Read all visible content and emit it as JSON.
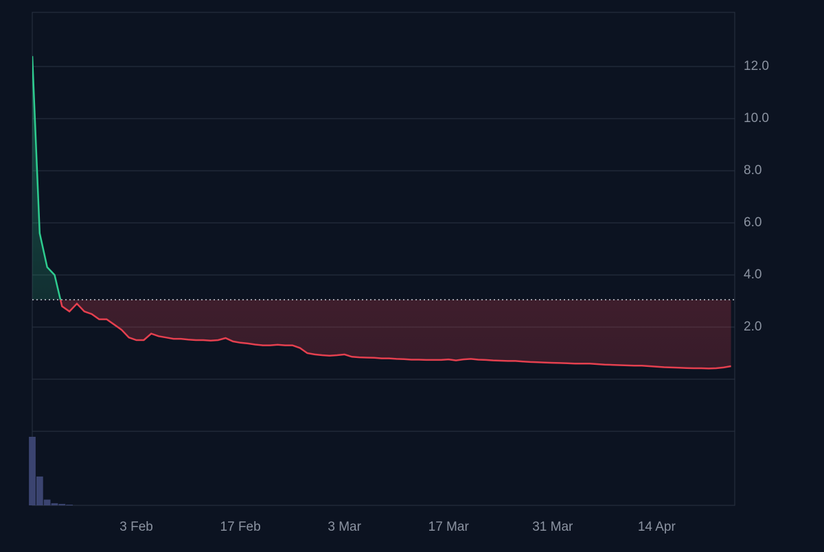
{
  "chart_data": {
    "type": "line",
    "categories": [
      null,
      null,
      null,
      null,
      null,
      null,
      null,
      null,
      null,
      null,
      null,
      null,
      null,
      null,
      "3 Feb",
      null,
      null,
      null,
      null,
      null,
      null,
      null,
      null,
      null,
      null,
      null,
      null,
      null,
      "17 Feb",
      null,
      null,
      null,
      null,
      null,
      null,
      null,
      null,
      null,
      null,
      null,
      null,
      null,
      "3 Mar",
      null,
      null,
      null,
      null,
      null,
      null,
      null,
      null,
      null,
      null,
      null,
      null,
      null,
      "17 Mar",
      null,
      null,
      null,
      null,
      null,
      null,
      null,
      null,
      null,
      null,
      null,
      null,
      null,
      "31 Mar",
      null,
      null,
      null,
      null,
      null,
      null,
      null,
      null,
      null,
      null,
      null,
      null,
      null,
      "14 Apr",
      null,
      null,
      null,
      null,
      null,
      null,
      null,
      null,
      null,
      null
    ],
    "series": [
      {
        "values": [
          12.4,
          5.6,
          4.3,
          4.0,
          2.8,
          2.6,
          2.9,
          2.6,
          2.5,
          2.3,
          2.3,
          2.1,
          1.9,
          1.6,
          1.5,
          1.5,
          1.75,
          1.65,
          1.6,
          1.55,
          1.55,
          1.52,
          1.5,
          1.5,
          1.48,
          1.5,
          1.58,
          1.45,
          1.4,
          1.37,
          1.33,
          1.3,
          1.3,
          1.32,
          1.3,
          1.3,
          1.2,
          1.0,
          0.95,
          0.92,
          0.9,
          0.92,
          0.95,
          0.86,
          0.84,
          0.83,
          0.82,
          0.8,
          0.8,
          0.78,
          0.77,
          0.75,
          0.75,
          0.74,
          0.74,
          0.74,
          0.76,
          0.72,
          0.76,
          0.78,
          0.75,
          0.74,
          0.72,
          0.71,
          0.7,
          0.7,
          0.68,
          0.66,
          0.65,
          0.64,
          0.63,
          0.62,
          0.61,
          0.6,
          0.6,
          0.6,
          0.58,
          0.56,
          0.55,
          0.54,
          0.53,
          0.52,
          0.52,
          0.5,
          0.48,
          0.46,
          0.45,
          0.44,
          0.43,
          0.42,
          0.42,
          0.41,
          0.42,
          0.45,
          0.5
        ],
        "up_color": "#2ecc8f",
        "down_color": "#e5404f"
      }
    ],
    "baseline": 3.05,
    "volume": {
      "color": "#3b4470",
      "values": [
        95,
        40,
        8,
        3,
        2,
        1,
        0,
        0,
        0,
        0,
        0,
        0,
        0,
        0,
        0,
        0,
        0,
        0,
        0,
        0,
        0,
        0,
        0,
        0,
        0,
        0,
        0,
        0,
        0,
        0,
        0,
        0,
        0,
        0,
        0,
        0,
        0,
        0,
        0,
        0,
        0,
        0,
        0,
        0,
        0,
        0,
        0,
        0,
        0,
        0,
        0,
        0,
        0,
        0,
        0,
        0,
        0,
        0,
        0,
        0,
        0,
        0,
        0,
        0,
        0,
        0,
        0,
        0,
        0,
        0,
        0,
        0,
        0,
        0,
        0,
        0,
        0,
        0,
        0,
        0,
        0,
        0,
        0,
        0,
        0,
        0,
        0,
        0,
        0,
        0,
        0,
        0,
        0,
        0,
        0
      ]
    },
    "ylim": [
      -2,
      14.08
    ],
    "yticks": [
      {
        "value": 0,
        "label": null
      },
      {
        "value": 2,
        "label": "2.0"
      },
      {
        "value": 4,
        "label": "4.0"
      },
      {
        "value": 6,
        "label": "6.0"
      },
      {
        "value": 8,
        "label": "8.0"
      },
      {
        "value": 10,
        "label": "10.0"
      },
      {
        "value": 12,
        "label": "12.0"
      }
    ],
    "grid": true
  }
}
